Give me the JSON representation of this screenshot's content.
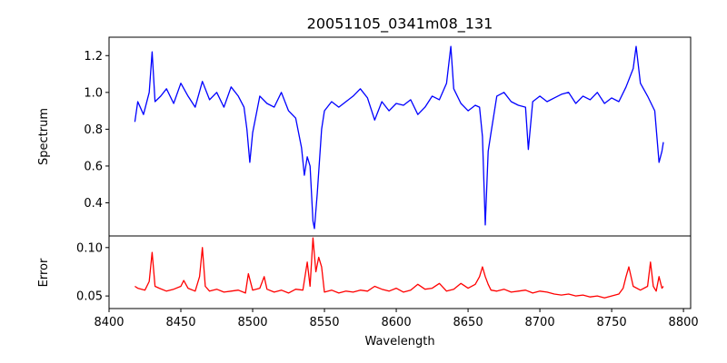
{
  "chart_data": [
    {
      "type": "line",
      "title": "20051105_0341m08_131",
      "xlabel": "",
      "ylabel": "Spectrum",
      "xlim": [
        8400,
        8805
      ],
      "ylim": [
        0.22,
        1.3
      ],
      "yticks": [
        0.4,
        0.6,
        0.8,
        1.0,
        1.2
      ],
      "ytick_labels": [
        "0.4",
        "0.6",
        "0.8",
        "1.0",
        "1.2"
      ],
      "grid": false,
      "series": [
        {
          "color": "#0000ff",
          "x": [
            8418,
            8420,
            8424,
            8428,
            8430,
            8432,
            8436,
            8440,
            8445,
            8450,
            8455,
            8460,
            8465,
            8470,
            8475,
            8480,
            8485,
            8490,
            8494,
            8496,
            8498,
            8500,
            8505,
            8510,
            8515,
            8520,
            8525,
            8530,
            8534,
            8536,
            8538,
            8540,
            8542,
            8543,
            8545,
            8548,
            8550,
            8555,
            8560,
            8565,
            8570,
            8575,
            8580,
            8585,
            8590,
            8595,
            8600,
            8605,
            8610,
            8615,
            8620,
            8625,
            8630,
            8635,
            8638,
            8640,
            8645,
            8650,
            8655,
            8658,
            8660,
            8662,
            8664,
            8666,
            8670,
            8675,
            8680,
            8685,
            8690,
            8692,
            8695,
            8700,
            8705,
            8710,
            8715,
            8720,
            8725,
            8730,
            8735,
            8740,
            8745,
            8750,
            8755,
            8760,
            8765,
            8767,
            8770,
            8775,
            8780,
            8783,
            8785,
            8786
          ],
          "y": [
            0.84,
            0.95,
            0.88,
            1.0,
            1.22,
            0.95,
            0.98,
            1.02,
            0.94,
            1.05,
            0.98,
            0.92,
            1.06,
            0.96,
            1.0,
            0.92,
            1.03,
            0.98,
            0.92,
            0.8,
            0.62,
            0.78,
            0.98,
            0.94,
            0.92,
            1.0,
            0.9,
            0.86,
            0.7,
            0.55,
            0.65,
            0.6,
            0.3,
            0.26,
            0.45,
            0.8,
            0.9,
            0.95,
            0.92,
            0.95,
            0.98,
            1.02,
            0.97,
            0.85,
            0.95,
            0.9,
            0.94,
            0.93,
            0.96,
            0.88,
            0.92,
            0.98,
            0.96,
            1.05,
            1.25,
            1.02,
            0.94,
            0.9,
            0.93,
            0.92,
            0.76,
            0.28,
            0.68,
            0.78,
            0.98,
            1.0,
            0.95,
            0.93,
            0.92,
            0.69,
            0.95,
            0.98,
            0.95,
            0.97,
            0.99,
            1.0,
            0.94,
            0.98,
            0.96,
            1.0,
            0.94,
            0.97,
            0.95,
            1.03,
            1.13,
            1.25,
            1.05,
            0.98,
            0.9,
            0.62,
            0.68,
            0.73
          ]
        }
      ]
    },
    {
      "type": "line",
      "title": "",
      "xlabel": "Wavelength",
      "ylabel": "Error",
      "xlim": [
        8400,
        8805
      ],
      "ylim": [
        0.037,
        0.112
      ],
      "xticks": [
        8400,
        8450,
        8500,
        8550,
        8600,
        8650,
        8700,
        8750,
        8800
      ],
      "xtick_labels": [
        "8400",
        "8450",
        "8500",
        "8550",
        "8600",
        "8650",
        "8700",
        "8750",
        "8800"
      ],
      "yticks": [
        0.05,
        0.1
      ],
      "ytick_labels": [
        "0.05",
        "0.10"
      ],
      "grid": false,
      "series": [
        {
          "color": "#ff0000",
          "x": [
            8418,
            8420,
            8425,
            8428,
            8430,
            8432,
            8435,
            8440,
            8445,
            8450,
            8452,
            8455,
            8460,
            8463,
            8465,
            8467,
            8470,
            8475,
            8480,
            8485,
            8490,
            8495,
            8497,
            8500,
            8505,
            8508,
            8510,
            8515,
            8520,
            8525,
            8530,
            8535,
            8538,
            8540,
            8542,
            8544,
            8546,
            8548,
            8550,
            8555,
            8560,
            8565,
            8570,
            8575,
            8580,
            8585,
            8590,
            8595,
            8600,
            8605,
            8610,
            8615,
            8620,
            8625,
            8630,
            8635,
            8640,
            8645,
            8650,
            8655,
            8658,
            8660,
            8662,
            8664,
            8666,
            8670,
            8675,
            8680,
            8685,
            8690,
            8695,
            8700,
            8705,
            8710,
            8715,
            8720,
            8725,
            8730,
            8735,
            8740,
            8745,
            8750,
            8755,
            8758,
            8760,
            8762,
            8765,
            8770,
            8775,
            8777,
            8779,
            8781,
            8783,
            8785,
            8786
          ],
          "y": [
            0.06,
            0.058,
            0.056,
            0.065,
            0.095,
            0.06,
            0.058,
            0.055,
            0.057,
            0.06,
            0.066,
            0.058,
            0.055,
            0.07,
            0.1,
            0.06,
            0.055,
            0.057,
            0.054,
            0.055,
            0.056,
            0.053,
            0.073,
            0.056,
            0.058,
            0.07,
            0.057,
            0.054,
            0.056,
            0.053,
            0.057,
            0.056,
            0.085,
            0.06,
            0.11,
            0.075,
            0.09,
            0.08,
            0.054,
            0.056,
            0.053,
            0.055,
            0.054,
            0.056,
            0.055,
            0.06,
            0.057,
            0.055,
            0.058,
            0.054,
            0.056,
            0.062,
            0.057,
            0.058,
            0.063,
            0.055,
            0.057,
            0.063,
            0.058,
            0.062,
            0.07,
            0.08,
            0.07,
            0.062,
            0.056,
            0.055,
            0.057,
            0.054,
            0.055,
            0.056,
            0.053,
            0.055,
            0.054,
            0.052,
            0.051,
            0.052,
            0.05,
            0.051,
            0.049,
            0.05,
            0.048,
            0.05,
            0.052,
            0.058,
            0.07,
            0.08,
            0.06,
            0.056,
            0.06,
            0.085,
            0.06,
            0.055,
            0.07,
            0.058,
            0.06
          ]
        }
      ]
    }
  ]
}
